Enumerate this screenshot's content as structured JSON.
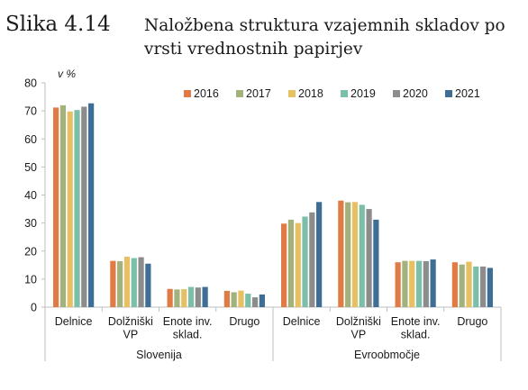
{
  "figure": {
    "label": "Slika 4.14",
    "title": "Naložbena struktura vzajemnih skladov po vrsti vrednostnih papirjev"
  },
  "chart_data": {
    "type": "bar",
    "ylabel": "v %",
    "ylim": [
      0,
      80
    ],
    "yticks": [
      0,
      10,
      20,
      30,
      40,
      50,
      60,
      70,
      80
    ],
    "grid": false,
    "legend": "top-right",
    "groups": [
      {
        "name": "Slovenija",
        "categories": [
          {
            "label": [
              "Delnice"
            ]
          },
          {
            "label": [
              "Dolžniški",
              "VP"
            ]
          },
          {
            "label": [
              "Enote inv.",
              "sklad."
            ]
          },
          {
            "label": [
              "Drugo"
            ]
          }
        ]
      },
      {
        "name": "Evroobmočje",
        "categories": [
          {
            "label": [
              "Delnice"
            ]
          },
          {
            "label": [
              "Dolžniški",
              "VP"
            ]
          },
          {
            "label": [
              "Enote inv.",
              "sklad."
            ]
          },
          {
            "label": [
              "Drugo"
            ]
          }
        ]
      }
    ],
    "series": [
      {
        "name": "2016",
        "color": "#e07b45",
        "values": [
          71.2,
          16.5,
          6.5,
          5.8,
          29.8,
          38.0,
          16.0,
          16.0
        ]
      },
      {
        "name": "2017",
        "color": "#a3b27c",
        "values": [
          72.0,
          16.4,
          6.3,
          5.3,
          31.2,
          37.4,
          16.5,
          15.2
        ]
      },
      {
        "name": "2018",
        "color": "#e6c063",
        "values": [
          69.8,
          18.0,
          6.4,
          5.9,
          30.0,
          37.5,
          16.5,
          16.2
        ]
      },
      {
        "name": "2019",
        "color": "#7bbfa8",
        "values": [
          70.3,
          17.5,
          7.2,
          4.8,
          32.3,
          36.5,
          16.5,
          14.5
        ]
      },
      {
        "name": "2020",
        "color": "#8c8c8c",
        "values": [
          71.5,
          17.8,
          7.0,
          3.5,
          33.8,
          35.0,
          16.4,
          14.5
        ]
      },
      {
        "name": "2021",
        "color": "#3e6e96",
        "values": [
          72.7,
          15.5,
          7.2,
          4.5,
          37.5,
          31.2,
          17.0,
          14.0
        ]
      }
    ]
  }
}
